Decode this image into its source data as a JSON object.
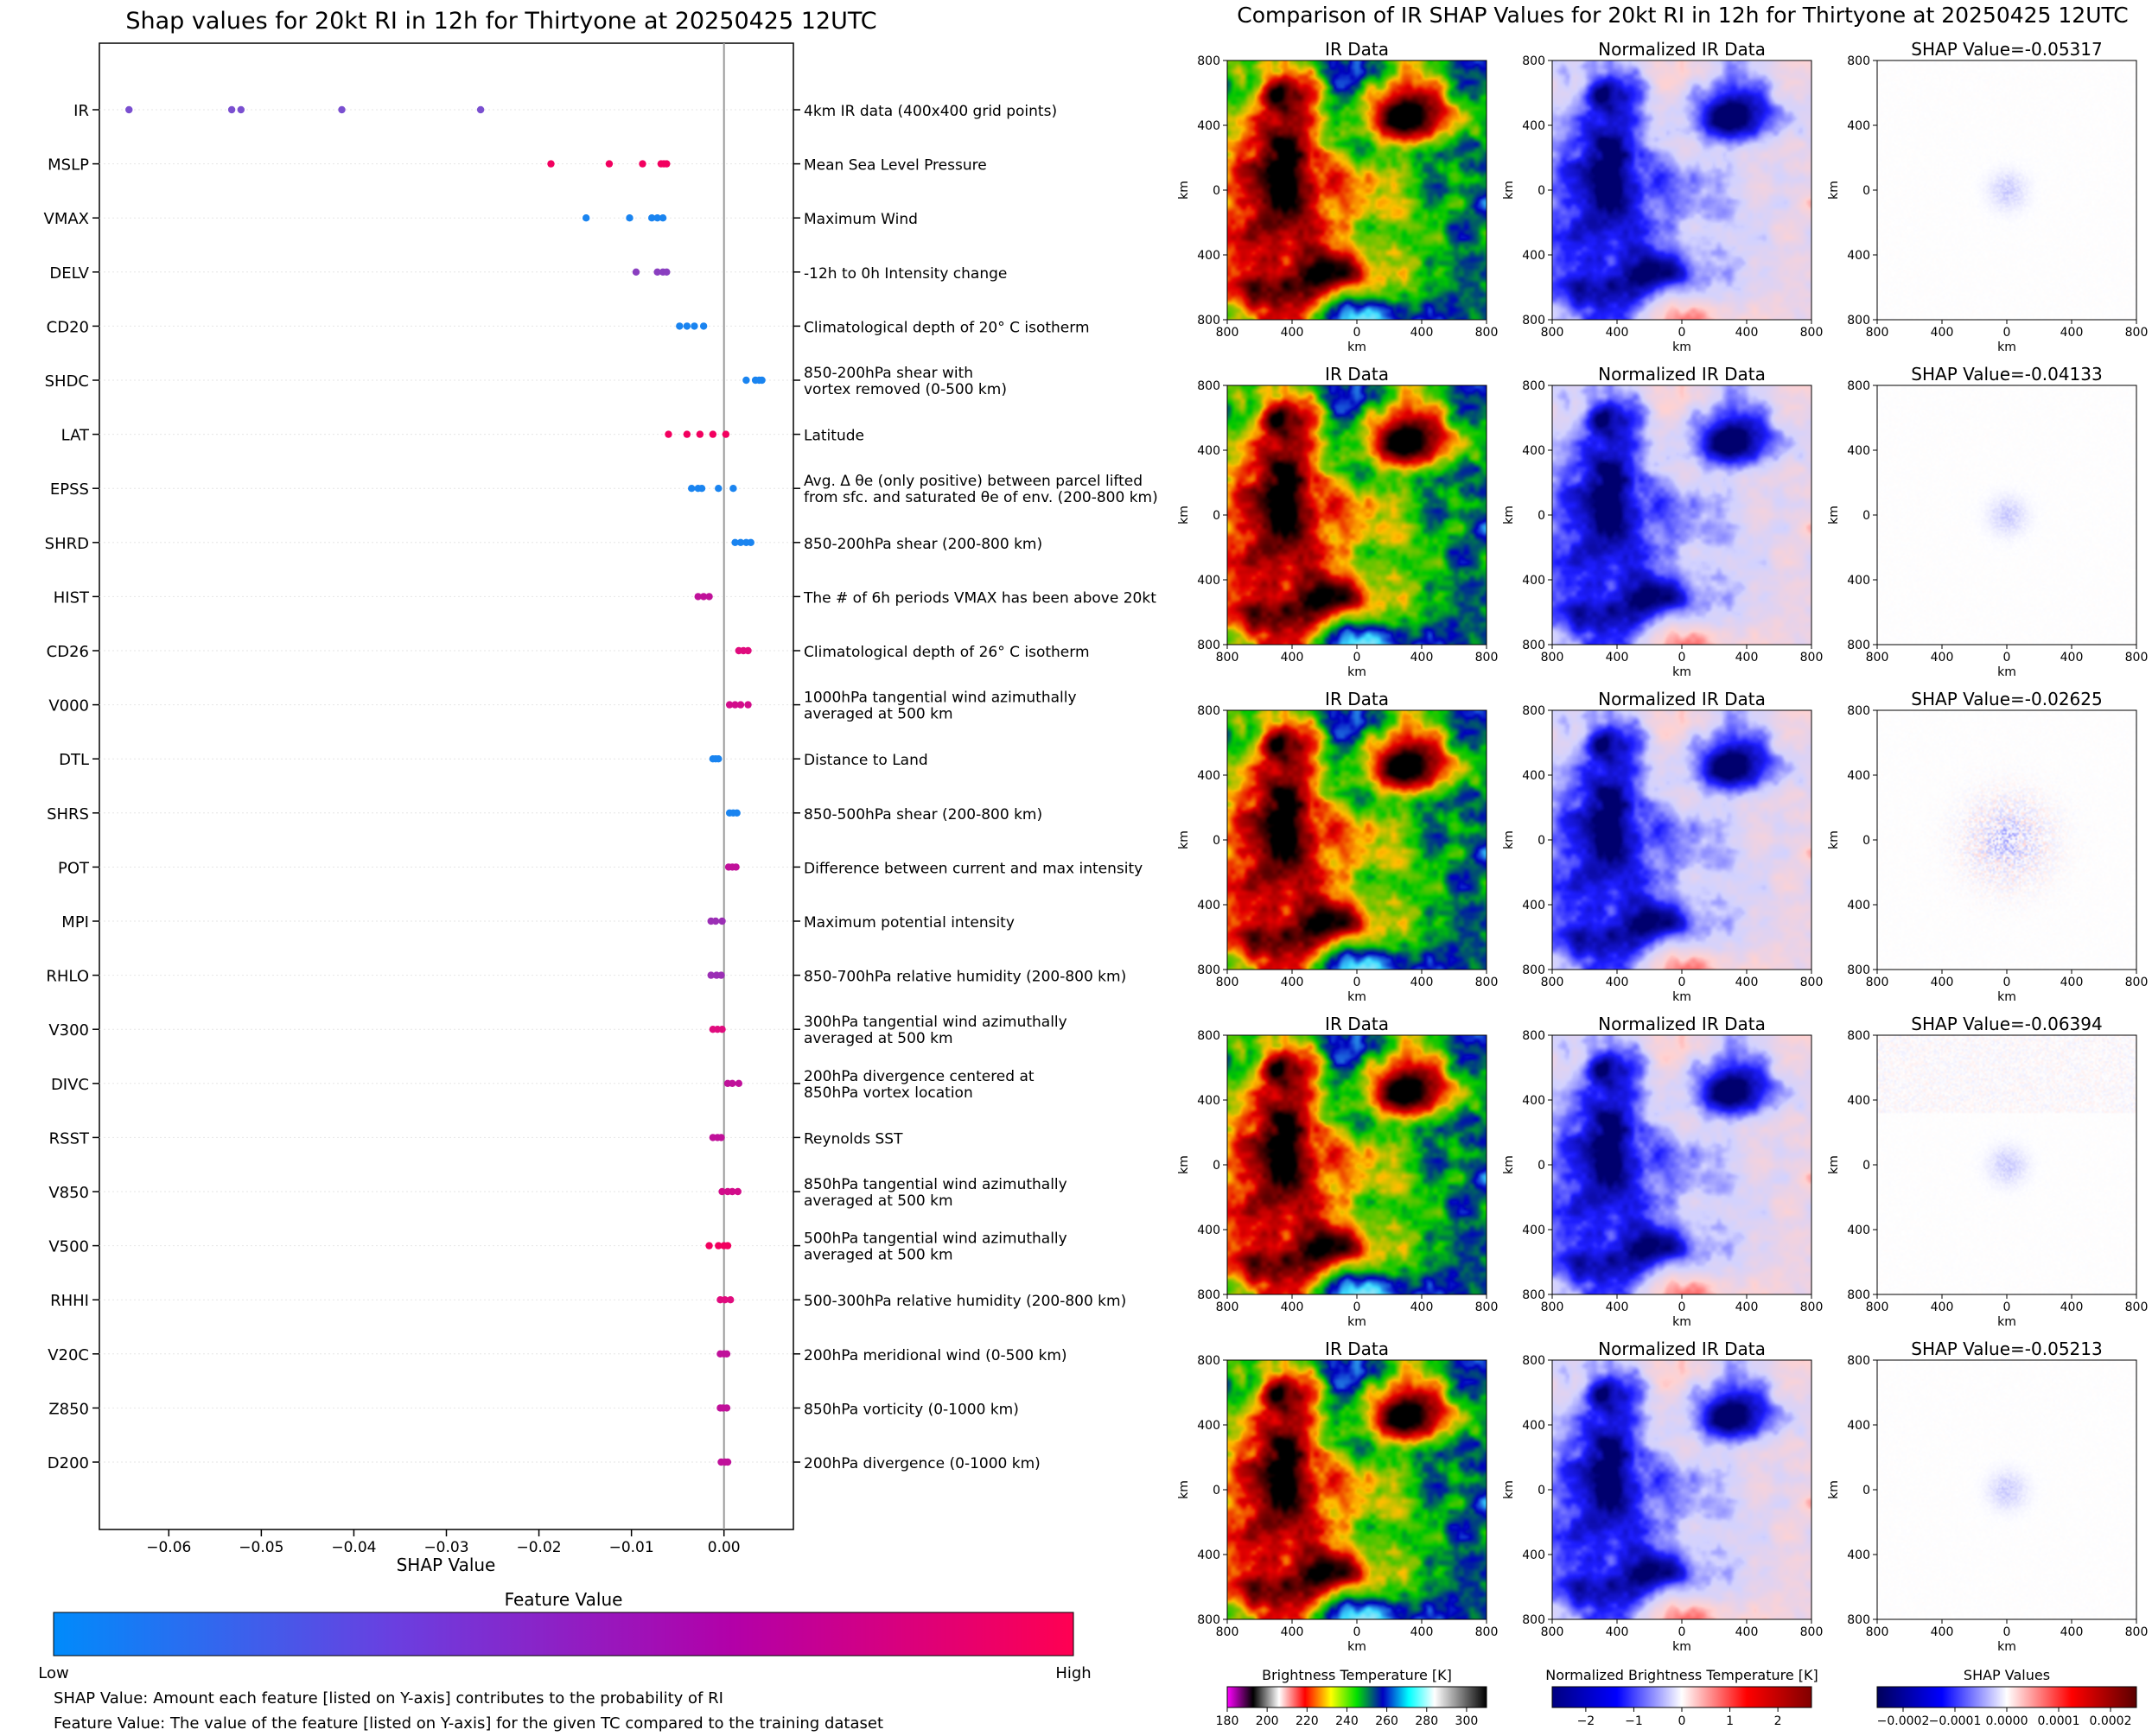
{
  "chart_data": [
    {
      "type": "scatter",
      "title": "Shap values for 20kt RI in 12h for Thirtyone at 20250425 12UTC",
      "xlabel": "SHAP Value",
      "xlim": [
        -0.0675,
        0.0075
      ],
      "xticks": [
        -0.06,
        -0.05,
        -0.04,
        -0.03,
        -0.02,
        -0.01,
        0.0
      ],
      "xtick_labels": [
        "−0.06",
        "−0.05",
        "−0.04",
        "−0.03",
        "−0.02",
        "−0.01",
        "0.00"
      ],
      "zero_line": true,
      "features": [
        {
          "name": "IR",
          "description": [
            "4km IR data (400x400 grid points)"
          ],
          "color": "#7a4fd0",
          "values": [
            -0.0643,
            -0.0532,
            -0.0522,
            -0.0413,
            -0.0263
          ]
        },
        {
          "name": "MSLP",
          "description": [
            "Mean Sea Level Pressure"
          ],
          "color": "#f2005f",
          "values": [
            -0.0187,
            -0.0124,
            -0.0088,
            -0.0068,
            -0.0065,
            -0.0062
          ]
        },
        {
          "name": "VMAX",
          "description": [
            "Maximum Wind"
          ],
          "color": "#1a84f0",
          "values": [
            -0.0149,
            -0.0102,
            -0.0078,
            -0.0072,
            -0.0066
          ]
        },
        {
          "name": "DELV",
          "description": [
            "-12h to 0h Intensity change"
          ],
          "color": "#8a3fc0",
          "values": [
            -0.0095,
            -0.0072,
            -0.0066,
            -0.0062
          ]
        },
        {
          "name": "CD20",
          "description": [
            "Climatological depth of 20° C isotherm"
          ],
          "color": "#1a84f0",
          "values": [
            -0.0048,
            -0.004,
            -0.0032,
            -0.0022
          ]
        },
        {
          "name": "SHDC",
          "description": [
            "850-200hPa shear with",
            "vortex removed (0-500 km)"
          ],
          "color": "#1a84f0",
          "values": [
            0.0024,
            0.0034,
            0.0038,
            0.0041
          ]
        },
        {
          "name": "LAT",
          "description": [
            "Latitude"
          ],
          "color": "#f2005f",
          "values": [
            -0.006,
            -0.004,
            -0.0026,
            -0.0012,
            0.0002
          ]
        },
        {
          "name": "EPSS",
          "description": [
            "Avg. Δ θe (only positive) between parcel lifted",
            "from sfc. and saturated θe of env. (200-800 km)"
          ],
          "color": "#1a84f0",
          "values": [
            -0.0035,
            -0.0028,
            -0.0024,
            -0.0006,
            0.001
          ]
        },
        {
          "name": "SHRD",
          "description": [
            "850-200hPa shear (200-800 km)"
          ],
          "color": "#1a84f0",
          "values": [
            0.0012,
            0.0018,
            0.0024,
            0.0029
          ]
        },
        {
          "name": "HIST",
          "description": [
            "The # of 6h periods VMAX has been above 20kt"
          ],
          "color": "#c0119a",
          "values": [
            -0.0028,
            -0.0022,
            -0.0016
          ]
        },
        {
          "name": "CD26",
          "description": [
            "Climatological depth of 26° C isotherm"
          ],
          "color": "#e00c7e",
          "values": [
            0.0016,
            0.0021,
            0.0026
          ]
        },
        {
          "name": "V000",
          "description": [
            "1000hPa tangential wind azimuthally",
            "averaged at 500 km"
          ],
          "color": "#d20c8a",
          "values": [
            0.0006,
            0.0012,
            0.0018,
            0.0026
          ]
        },
        {
          "name": "DTL",
          "description": [
            "Distance to Land"
          ],
          "color": "#1a84f0",
          "values": [
            -0.0012,
            -0.0009,
            -0.0006
          ]
        },
        {
          "name": "SHRS",
          "description": [
            "850-500hPa shear (200-800 km)"
          ],
          "color": "#1a84f0",
          "values": [
            0.0006,
            0.001,
            0.0014
          ]
        },
        {
          "name": "POT",
          "description": [
            "Difference between current and max intensity"
          ],
          "color": "#c0119a",
          "values": [
            0.0005,
            0.0009,
            0.0013
          ]
        },
        {
          "name": "MPI",
          "description": [
            "Maximum potential intensity"
          ],
          "color": "#9b2fb5",
          "values": [
            -0.0014,
            -0.0009,
            -0.0002
          ]
        },
        {
          "name": "RHLO",
          "description": [
            "850-700hPa relative humidity (200-800 km)"
          ],
          "color": "#9b2fb5",
          "values": [
            -0.0014,
            -0.0008,
            -0.0003
          ]
        },
        {
          "name": "V300",
          "description": [
            "300hPa tangential wind azimuthally",
            "averaged at 500 km"
          ],
          "color": "#e00c7e",
          "values": [
            -0.0012,
            -0.0007,
            -0.0002
          ]
        },
        {
          "name": "DIVC",
          "description": [
            "200hPa divergence centered at",
            "850hPa vortex location"
          ],
          "color": "#c0119a",
          "values": [
            0.0004,
            0.0009,
            0.0016
          ]
        },
        {
          "name": "RSST",
          "description": [
            "Reynolds SST"
          ],
          "color": "#c0119a",
          "values": [
            -0.0012,
            -0.0007,
            -0.0003
          ]
        },
        {
          "name": "V850",
          "description": [
            "850hPa tangential wind azimuthally",
            "averaged at 500 km"
          ],
          "color": "#d20c8a",
          "values": [
            -0.0002,
            0.0004,
            0.0009,
            0.0015
          ]
        },
        {
          "name": "V500",
          "description": [
            "500hPa tangential wind azimuthally",
            "averaged at 500 km"
          ],
          "color": "#f2005f",
          "values": [
            -0.0016,
            -0.0006,
            0.0,
            0.0004
          ]
        },
        {
          "name": "RHHI",
          "description": [
            "500-300hPa relative humidity (200-800 km)"
          ],
          "color": "#e00c7e",
          "values": [
            -0.0004,
            0.0001,
            0.0007
          ]
        },
        {
          "name": "V20C",
          "description": [
            "200hPa meridional wind (0-500 km)"
          ],
          "color": "#c0119a",
          "values": [
            -0.0004,
            0.0,
            0.0003
          ]
        },
        {
          "name": "Z850",
          "description": [
            "850hPa vorticity (0-1000 km)"
          ],
          "color": "#c0119a",
          "values": [
            -0.0004,
            -0.0001,
            0.0003
          ]
        },
        {
          "name": "D200",
          "description": [
            "200hPa divergence (0-1000 km)"
          ],
          "color": "#c0119a",
          "values": [
            -0.0003,
            0.0001,
            0.0004
          ]
        }
      ],
      "colorbar": {
        "label": "Feature Value",
        "low_label": "Low",
        "high_label": "High",
        "colors": [
          "#008bfb",
          "#6a3fe0",
          "#b300a8",
          "#ff0052"
        ]
      },
      "notes": [
        "SHAP Value: Amount each feature [listed on Y-axis] contributes to the probability of RI",
        "Feature Value: The value of the feature [listed on Y-axis] for the given TC compared to the training dataset"
      ]
    },
    {
      "type": "heatmap",
      "title": "Comparison of IR SHAP Values for 20kt RI in 12h for Thirtyone at 20250425 12UTC",
      "panel_titles": [
        "IR Data",
        "Normalized IR Data"
      ],
      "shap_titles": [
        "SHAP Value=-0.05317",
        "SHAP Value=-0.04133",
        "SHAP Value=-0.02625",
        "SHAP Value=-0.06394",
        "SHAP Value=-0.05213"
      ],
      "axis_label": "km",
      "axis_ticks": [
        "800",
        "400",
        "0",
        "400",
        "800"
      ],
      "colorbars": [
        {
          "label": "Brightness Temperature [K]",
          "ticks": [
            "180",
            "200",
            "220",
            "240",
            "260",
            "280",
            "300"
          ],
          "range": [
            180,
            310
          ],
          "colors": [
            "#ff00ff",
            "#000000",
            "#ffffff",
            "#ff0000",
            "#ffff00",
            "#00e000",
            "#0000c0",
            "#00ffff",
            "#ffffff",
            "#808080",
            "#000000"
          ]
        },
        {
          "label": "Normalized Brightness Temperature [K]",
          "ticks": [
            "−2",
            "−1",
            "0",
            "1",
            "2"
          ],
          "range": [
            -2.7,
            2.7
          ],
          "colors": [
            "#000080",
            "#0000ff",
            "#ffffff",
            "#ff0000",
            "#800000"
          ]
        },
        {
          "label": "SHAP Values",
          "ticks": [
            "−0.0002",
            "−0.0001",
            "0.0000",
            "0.0001",
            "0.0002"
          ],
          "range": [
            -0.00025,
            0.00025
          ],
          "colors": [
            "#00005a",
            "#0000ff",
            "#ffffff",
            "#ff0000",
            "#5a0000"
          ]
        }
      ]
    }
  ]
}
